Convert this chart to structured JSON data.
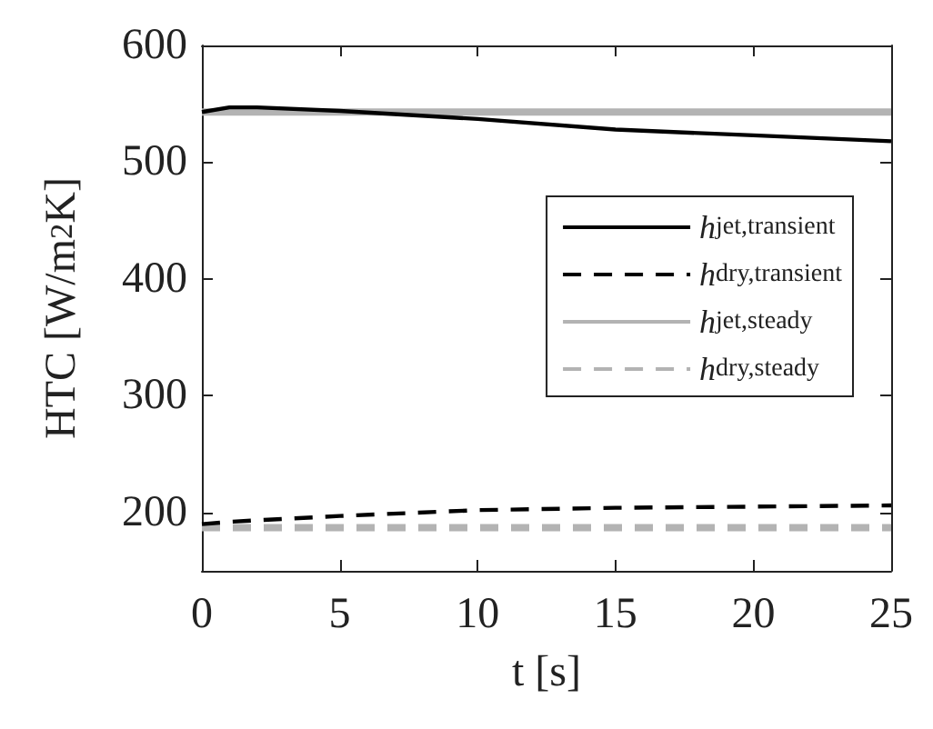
{
  "chart_data": {
    "type": "line",
    "xlabel": "t [s]",
    "ylabel": "HTC [W/m$^{2}$K]",
    "xlim": [
      0,
      25
    ],
    "ylim": [
      150,
      600
    ],
    "xticks": [
      0,
      5,
      10,
      15,
      20,
      25
    ],
    "yticks": [
      200,
      300,
      400,
      500,
      600
    ],
    "grid": false,
    "legend": "top right",
    "marker": "none",
    "series": [
      {
        "name": "h$_{jet,transient}$",
        "color": "#000000",
        "line_style": "solid",
        "x": [
          0,
          1,
          2,
          5,
          10,
          15,
          20,
          25
        ],
        "values": [
          543,
          547,
          547,
          544,
          537,
          528,
          523,
          518
        ]
      },
      {
        "name": "h$_{dry,transient}$",
        "color": "#000000",
        "line_style": "dashed",
        "x": [
          0,
          1,
          5,
          10,
          15,
          20,
          25
        ],
        "values": [
          190,
          192,
          197,
          202,
          204,
          205,
          206
        ]
      },
      {
        "name": "h$_{jet,steady}$",
        "color": "#b3b3b3",
        "line_style": "solid",
        "x": [
          0,
          25
        ],
        "values": [
          543,
          543
        ]
      },
      {
        "name": "h$_{dry,steady}$",
        "color": "#b3b3b3",
        "line_style": "dashed",
        "x": [
          0,
          25
        ],
        "values": [
          187,
          187
        ]
      }
    ]
  }
}
